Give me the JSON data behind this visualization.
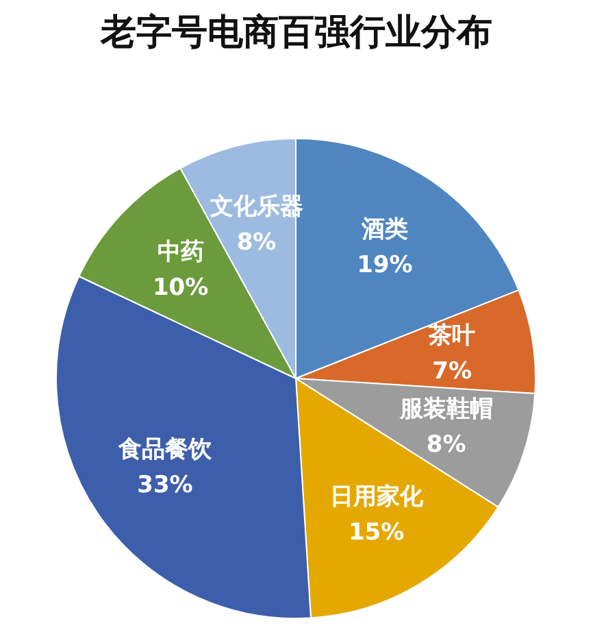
{
  "chart_data": {
    "type": "pie",
    "title": "老字号电商百强行业分布",
    "categories": [
      "酒类",
      "茶叶",
      "服装鞋帽",
      "日用家化",
      "食品餐饮",
      "中药",
      "文化乐器"
    ],
    "values": [
      19,
      7,
      8,
      15,
      33,
      10,
      8
    ],
    "value_labels": [
      "19%",
      "7%",
      "8%",
      "15%",
      "33%",
      "10%",
      "8%"
    ],
    "colors": [
      "#4f86c0",
      "#d8692a",
      "#9c9c9c",
      "#e5a800",
      "#3d5fab",
      "#6b9b3c",
      "#9dbbe0"
    ],
    "legend": false
  }
}
